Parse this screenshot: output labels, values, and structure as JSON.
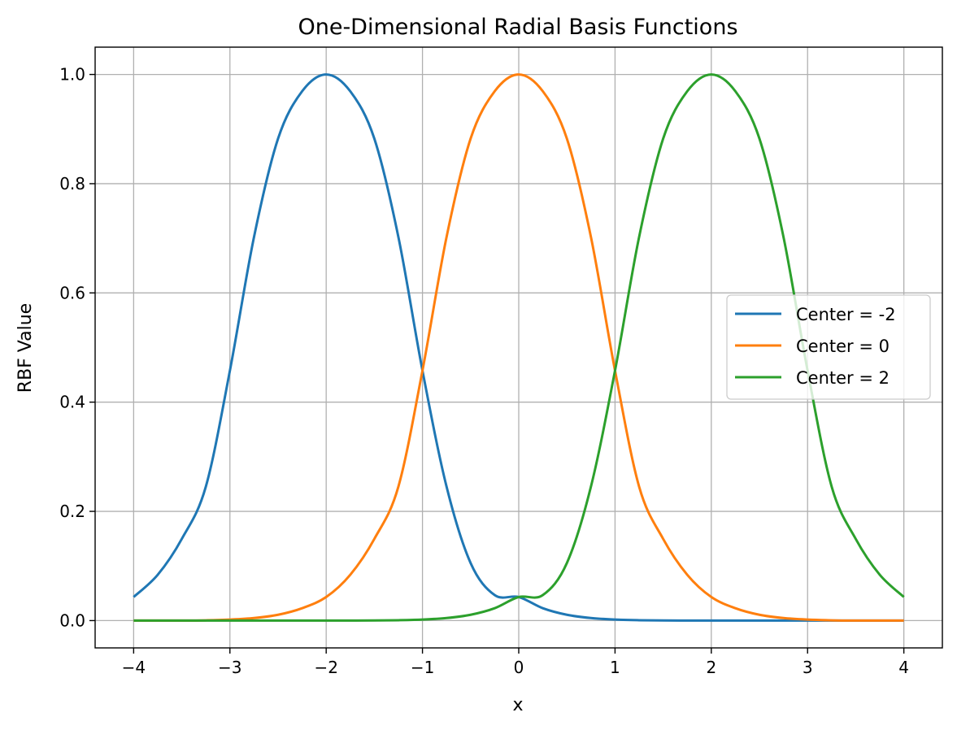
{
  "chart_data": {
    "type": "line",
    "title": "One-Dimensional Radial Basis Functions",
    "xlabel": "x",
    "ylabel": "RBF Value",
    "xlim": [
      -4.4,
      4.4
    ],
    "ylim": [
      -0.05,
      1.05
    ],
    "xticks": [
      -4,
      -3,
      -2,
      -1,
      0,
      1,
      2,
      3,
      4
    ],
    "xtick_labels": [
      "−4",
      "−3",
      "−2",
      "−1",
      "0",
      "1",
      "2",
      "3",
      "4"
    ],
    "yticks": [
      0.0,
      0.2,
      0.4,
      0.6,
      0.8,
      1.0
    ],
    "ytick_labels": [
      "0.0",
      "0.2",
      "0.4",
      "0.6",
      "0.8",
      "1.0"
    ],
    "grid": true,
    "legend_position": "center-right",
    "x": [
      -4.0,
      -3.75,
      -3.5,
      -3.25,
      -3.0,
      -2.75,
      -2.5,
      -2.25,
      -2.0,
      -1.75,
      -1.5,
      -1.25,
      -1.0,
      -0.75,
      -0.5,
      -0.25,
      0.0,
      0.25,
      0.5,
      0.75,
      1.0,
      1.25,
      1.5,
      1.75,
      2.0,
      2.25,
      2.5,
      2.75,
      3.0,
      3.25,
      3.5,
      3.75,
      4.0
    ],
    "series": [
      {
        "name": "Center = -2",
        "color": "#1f77b4",
        "values": [
          0.0432,
          0.0839,
          0.1496,
          0.2454,
          0.4578,
          0.7022,
          0.8825,
          0.9692,
          1.0,
          0.9692,
          0.8825,
          0.7022,
          0.4578,
          0.2454,
          0.1054,
          0.0468,
          0.0432,
          0.0227,
          0.0107,
          0.0047,
          0.0019,
          0.0007,
          0.0002,
          0.0001,
          0.0,
          0.0,
          0.0,
          0.0,
          0.0,
          0.0,
          0.0,
          0.0,
          0.0
        ]
      },
      {
        "name": "Center = 0",
        "color": "#ff7f0e",
        "values": [
          0.0,
          0.0,
          0.0,
          0.0005,
          0.0019,
          0.0047,
          0.0107,
          0.0227,
          0.0432,
          0.0839,
          0.1496,
          0.2454,
          0.4578,
          0.7022,
          0.8825,
          0.9692,
          1.0,
          0.9692,
          0.8825,
          0.7022,
          0.4578,
          0.2454,
          0.1496,
          0.0839,
          0.0432,
          0.0227,
          0.0107,
          0.0047,
          0.0019,
          0.0005,
          0.0,
          0.0,
          0.0
        ]
      },
      {
        "name": "Center = 2",
        "color": "#2ca02c",
        "values": [
          0.0,
          0.0,
          0.0,
          0.0,
          0.0,
          0.0,
          0.0,
          0.0,
          0.0,
          0.0001,
          0.0002,
          0.0007,
          0.0019,
          0.0047,
          0.0107,
          0.0227,
          0.0432,
          0.0468,
          0.1054,
          0.2454,
          0.4578,
          0.7022,
          0.8825,
          0.9692,
          1.0,
          0.9692,
          0.8825,
          0.7022,
          0.4578,
          0.2454,
          0.1496,
          0.0839,
          0.0432
        ]
      }
    ]
  }
}
